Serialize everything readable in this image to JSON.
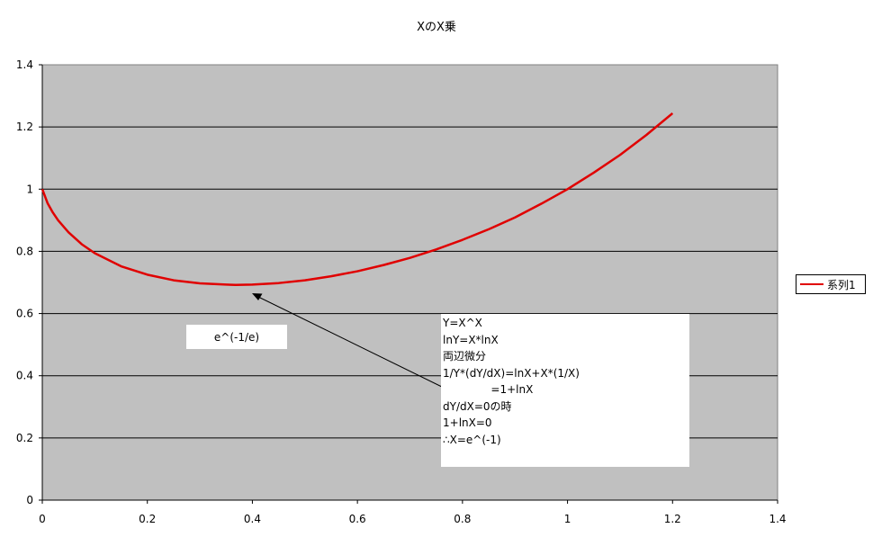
{
  "chart_data": {
    "type": "line",
    "title": "XのX乗",
    "xlabel": "",
    "ylabel": "",
    "xlim": [
      0,
      1.4
    ],
    "ylim": [
      0,
      1.4
    ],
    "x_ticks": [
      "0",
      "0.2",
      "0.4",
      "0.6",
      "0.8",
      "1",
      "1.2",
      "1.4"
    ],
    "y_ticks": [
      "0",
      "0.2",
      "0.4",
      "0.6",
      "0.8",
      "1",
      "1.2",
      "1.4"
    ],
    "grid": "horizontal",
    "legend_position": "right",
    "plot_background": "#c0c0c0",
    "series": [
      {
        "name": "系列1",
        "color": "#e00000",
        "x": [
          0,
          0.01,
          0.02,
          0.03,
          0.05,
          0.075,
          0.1,
          0.15,
          0.2,
          0.25,
          0.3,
          0.35,
          0.368,
          0.4,
          0.45,
          0.5,
          0.55,
          0.6,
          0.65,
          0.7,
          0.75,
          0.8,
          0.85,
          0.9,
          0.95,
          1.0,
          1.05,
          1.1,
          1.15,
          1.2
        ],
        "y": [
          1,
          0.955,
          0.925,
          0.9,
          0.861,
          0.823,
          0.794,
          0.752,
          0.725,
          0.707,
          0.697,
          0.693,
          0.692,
          0.693,
          0.698,
          0.707,
          0.72,
          0.736,
          0.756,
          0.779,
          0.806,
          0.837,
          0.871,
          0.909,
          0.953,
          1.0,
          1.053,
          1.11,
          1.174,
          1.244
        ]
      }
    ],
    "annotations": {
      "min_label": "e^(-1/e)",
      "note_lines": [
        "Y=X^X",
        "lnY=X*lnX",
        "両辺微分",
        "1/Y*(dY/dX)=lnX+X*(1/X)",
        "              =1+lnX",
        "dY/dX=0の時",
        "1+lnX=0",
        "∴X=e^(-1)"
      ]
    }
  }
}
